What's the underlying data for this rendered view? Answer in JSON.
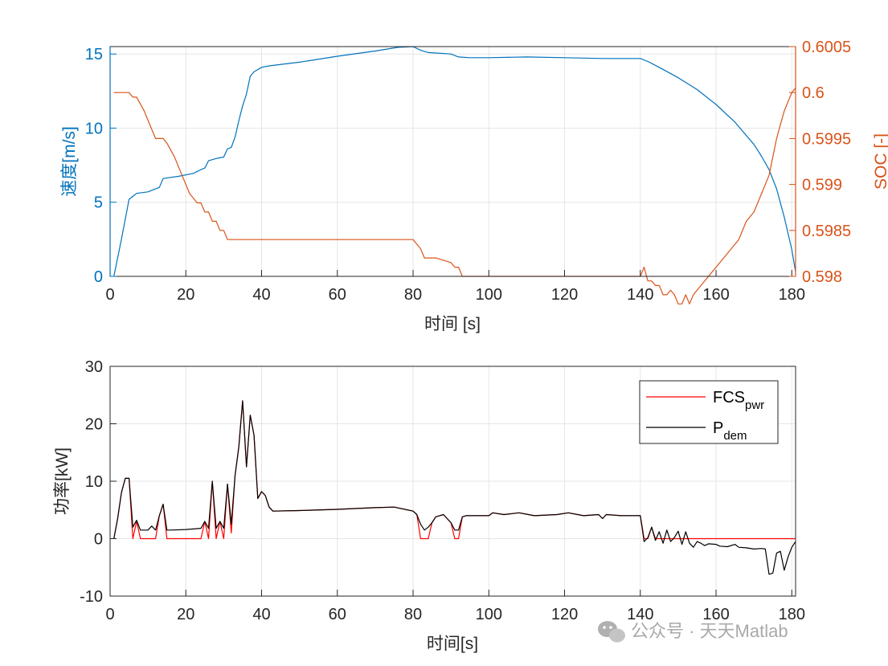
{
  "colors": {
    "speed": "#0072BD",
    "soc": "#D95319",
    "fcs": "#FF0000",
    "pdem": "#000000",
    "grid": "#e6e6e6",
    "axis": "#262626"
  },
  "watermark": "公众号 · 天天Matlab",
  "chart_data": [
    {
      "type": "line",
      "xlabel": "时间 [s]",
      "ylabel_left": "速度[m/s]",
      "ylabel_right": "SOC [-]",
      "xlim": [
        0,
        181
      ],
      "ylim_left": [
        0,
        15.5
      ],
      "ylim_right": [
        0.598,
        0.6005
      ],
      "xticks": [
        "0",
        "20",
        "40",
        "60",
        "80",
        "100",
        "120",
        "140",
        "160",
        "180"
      ],
      "yticks_left": [
        "0",
        "5",
        "10",
        "15"
      ],
      "yticks_right": [
        "0.598",
        "0.5985",
        "0.599",
        "0.5995",
        "0.6",
        "0.6005"
      ],
      "grid": true,
      "series": [
        {
          "axis": "left",
          "color": "#0072BD",
          "x": [
            1,
            3,
            5,
            6,
            7,
            10,
            12,
            13,
            14,
            18,
            22,
            24,
            25,
            26,
            28,
            29,
            30,
            31,
            32,
            33,
            34,
            35,
            36,
            37,
            38,
            40,
            42,
            50,
            60,
            70,
            76,
            80,
            82,
            84,
            90,
            92,
            95,
            100,
            110,
            120,
            130,
            140,
            142,
            145,
            150,
            155,
            160,
            165,
            170,
            172,
            174,
            176,
            178,
            180,
            181
          ],
          "y": [
            0,
            2.5,
            5.2,
            5.4,
            5.6,
            5.7,
            5.9,
            6.0,
            6.6,
            6.75,
            6.95,
            7.2,
            7.3,
            7.8,
            7.95,
            8.0,
            8.05,
            8.6,
            8.7,
            9.4,
            10.5,
            11.5,
            12.3,
            13.5,
            13.8,
            14.1,
            14.2,
            14.45,
            14.85,
            15.2,
            15.45,
            15.5,
            15.25,
            15.1,
            15.0,
            14.8,
            14.75,
            14.75,
            14.8,
            14.75,
            14.7,
            14.7,
            14.5,
            14.1,
            13.4,
            12.6,
            11.6,
            10.4,
            8.9,
            8.1,
            7.2,
            5.9,
            4.0,
            1.8,
            0.3
          ]
        },
        {
          "axis": "right",
          "color": "#D95319",
          "x": [
            1,
            5,
            6,
            7,
            9,
            11,
            12,
            14,
            15,
            17,
            19,
            21,
            23,
            24,
            25,
            26,
            27,
            28,
            29,
            30,
            31,
            32,
            40,
            60,
            70,
            80,
            81,
            82,
            83,
            86,
            90,
            91,
            92,
            93,
            100,
            110,
            120,
            130,
            140,
            141,
            142,
            143,
            144,
            145,
            146,
            147,
            148,
            149,
            150,
            151,
            152,
            153,
            154,
            156,
            158,
            160,
            162,
            164,
            166,
            168,
            170,
            172,
            174,
            175,
            176,
            177,
            178,
            179,
            180,
            181
          ],
          "y": [
            0.6,
            0.6,
            0.59995,
            0.59995,
            0.5998,
            0.5996,
            0.5995,
            0.5995,
            0.59945,
            0.5993,
            0.5991,
            0.5989,
            0.5988,
            0.5988,
            0.5987,
            0.5987,
            0.5986,
            0.5986,
            0.5985,
            0.5985,
            0.5984,
            0.5984,
            0.5984,
            0.5984,
            0.5984,
            0.5984,
            0.59835,
            0.5983,
            0.5982,
            0.5982,
            0.59815,
            0.5981,
            0.5981,
            0.598,
            0.598,
            0.598,
            0.598,
            0.598,
            0.598,
            0.5981,
            0.59795,
            0.59795,
            0.5979,
            0.5979,
            0.5978,
            0.5978,
            0.59785,
            0.5978,
            0.5977,
            0.5977,
            0.5978,
            0.5977,
            0.5978,
            0.5979,
            0.598,
            0.5981,
            0.5982,
            0.5983,
            0.5984,
            0.5986,
            0.5987,
            0.5989,
            0.5991,
            0.5993,
            0.5995,
            0.59965,
            0.5998,
            0.5999,
            0.6,
            0.60005
          ]
        }
      ]
    },
    {
      "type": "line",
      "xlabel": "时间[s]",
      "ylabel": "功率[kW]",
      "xlim": [
        0,
        181
      ],
      "ylim": [
        -10,
        30
      ],
      "xticks": [
        "0",
        "20",
        "40",
        "60",
        "80",
        "100",
        "120",
        "140",
        "160",
        "180"
      ],
      "yticks": [
        "-10",
        "0",
        "10",
        "20",
        "30"
      ],
      "grid": true,
      "legend": "top-right",
      "series": [
        {
          "name": "FCS",
          "name_sub": "pwr",
          "color": "#FF0000",
          "x": [
            1,
            2,
            3,
            4,
            5,
            6,
            7,
            8,
            9,
            10,
            11,
            12,
            13,
            14,
            15,
            16,
            20,
            24,
            25,
            26,
            27,
            28,
            29,
            30,
            31,
            32,
            33,
            34,
            35,
            36,
            37,
            38,
            39,
            40,
            41,
            42,
            43,
            50,
            60,
            70,
            75,
            80,
            81,
            82,
            83,
            84,
            85,
            86,
            87,
            88,
            89,
            90,
            91,
            92,
            93,
            94,
            95,
            100,
            101,
            104,
            108,
            112,
            118,
            121,
            125,
            129,
            130,
            131,
            135,
            140,
            141,
            142,
            143,
            144,
            145,
            146,
            147,
            148,
            149,
            150,
            151,
            152,
            153,
            154,
            155,
            156,
            157,
            158,
            160,
            165,
            170,
            175,
            180,
            181
          ],
          "y": [
            0,
            3.5,
            8,
            10.5,
            10.5,
            0,
            3,
            0,
            0,
            0,
            0,
            0,
            4,
            6,
            0,
            0,
            0,
            0,
            3,
            0,
            10,
            0,
            3,
            0,
            9.5,
            1,
            11,
            16,
            24,
            12.5,
            21.5,
            18,
            7,
            8.2,
            7.5,
            5.5,
            4.8,
            4.9,
            5.1,
            5.4,
            5.5,
            4.8,
            4.2,
            0,
            0,
            0,
            2.8,
            3.8,
            4.0,
            4.2,
            3.5,
            2.8,
            0,
            0,
            3.8,
            4.0,
            4.0,
            4.0,
            4.5,
            4.2,
            4.5,
            4.0,
            4.2,
            4.5,
            4.0,
            4.2,
            3.5,
            4.2,
            4.0,
            4.0,
            0,
            0,
            2,
            0,
            0,
            0,
            0,
            0,
            0,
            0,
            0,
            0,
            0,
            0,
            0,
            0,
            0,
            0,
            0,
            0,
            0,
            0,
            0,
            0
          ]
        },
        {
          "name": "P",
          "name_sub": "dem",
          "color": "#000000",
          "x": [
            1,
            2,
            3,
            4,
            5,
            6,
            7,
            8,
            9,
            10,
            11,
            12,
            13,
            14,
            15,
            16,
            20,
            24,
            25,
            26,
            27,
            28,
            29,
            30,
            31,
            32,
            33,
            34,
            35,
            36,
            37,
            38,
            39,
            40,
            41,
            42,
            43,
            50,
            60,
            70,
            75,
            80,
            81,
            82,
            83,
            84,
            85,
            86,
            87,
            88,
            89,
            90,
            91,
            92,
            93,
            94,
            95,
            100,
            101,
            104,
            108,
            112,
            118,
            121,
            125,
            129,
            130,
            131,
            135,
            140,
            141,
            142,
            143,
            144,
            145,
            146,
            147,
            148,
            149,
            150,
            151,
            152,
            153,
            154,
            155,
            156,
            157,
            158,
            160,
            161,
            163,
            165,
            166,
            168,
            170,
            172,
            173,
            174,
            175,
            176,
            177,
            178,
            179,
            180,
            181
          ],
          "y": [
            0,
            3.5,
            8,
            10.5,
            10.5,
            2,
            3.2,
            1.5,
            1.5,
            1.5,
            2.2,
            1.5,
            4,
            6,
            1.5,
            1.5,
            1.6,
            1.8,
            3,
            1.8,
            10,
            1.8,
            3,
            1.8,
            9.5,
            2.5,
            11,
            16,
            24,
            12.5,
            21.5,
            18,
            7,
            8.2,
            7.5,
            5.5,
            4.8,
            4.9,
            5.1,
            5.4,
            5.5,
            4.8,
            4.2,
            2.5,
            1.5,
            2.0,
            2.8,
            3.8,
            4.0,
            4.2,
            3.5,
            2.8,
            1.5,
            1.5,
            3.8,
            4.0,
            4.0,
            4.0,
            4.5,
            4.2,
            4.5,
            4.0,
            4.2,
            4.5,
            4.0,
            4.2,
            3.5,
            4.2,
            4.0,
            4.0,
            -0.5,
            0.2,
            2,
            -0.3,
            1.2,
            -0.8,
            1.5,
            -0.5,
            0.2,
            1.3,
            -1.0,
            1.2,
            -0.8,
            -1.5,
            -0.5,
            -0.8,
            -1.2,
            -0.9,
            -1.0,
            -1.3,
            -1.4,
            -1.0,
            -1.5,
            -1.6,
            -1.8,
            -1.7,
            -1.8,
            -6.2,
            -6.0,
            -2.5,
            -2.2,
            -5.5,
            -3.2,
            -1.5,
            -0.5
          ]
        }
      ]
    }
  ]
}
